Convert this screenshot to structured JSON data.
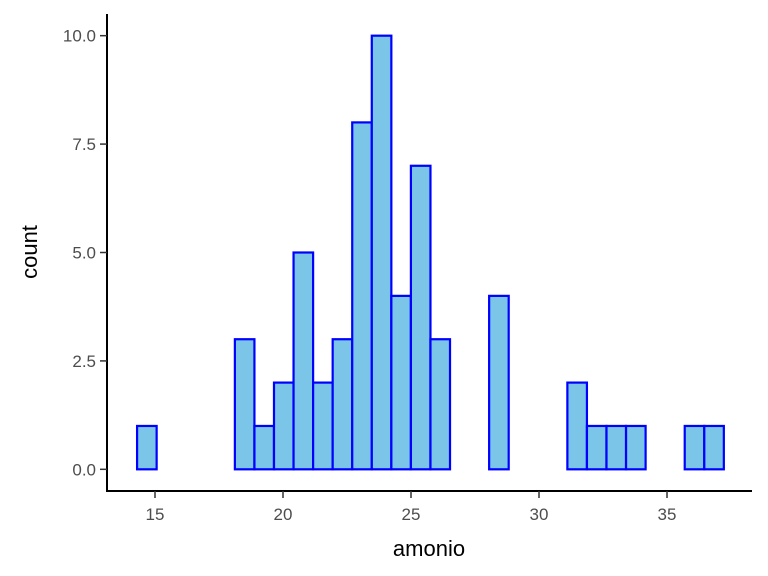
{
  "chart_data": {
    "type": "bar",
    "subtype": "histogram",
    "title": "",
    "xlabel": "amonio",
    "ylabel": "count",
    "bin_start": 14.3,
    "bin_width": 0.764,
    "counts": [
      1,
      0,
      0,
      0,
      0,
      3,
      1,
      2,
      5,
      2,
      3,
      8,
      10,
      4,
      7,
      3,
      0,
      0,
      4,
      0,
      0,
      0,
      2,
      1,
      1,
      1,
      0,
      0,
      1,
      1
    ],
    "xlim": [
      13.125,
      38.32
    ],
    "ylim": [
      -0.5,
      10.5
    ],
    "xticks": [
      15,
      20,
      25,
      30,
      35
    ],
    "xtick_labels": [
      "15",
      "20",
      "25",
      "30",
      "35"
    ],
    "yticks": [
      0,
      2.5,
      5,
      7.5,
      10
    ],
    "ytick_labels": [
      "0.0",
      "2.5",
      "5.0",
      "7.5",
      "10.0"
    ],
    "grid": false,
    "colors": {
      "fill": "#7AC5E8",
      "stroke": "#0000FF"
    }
  }
}
